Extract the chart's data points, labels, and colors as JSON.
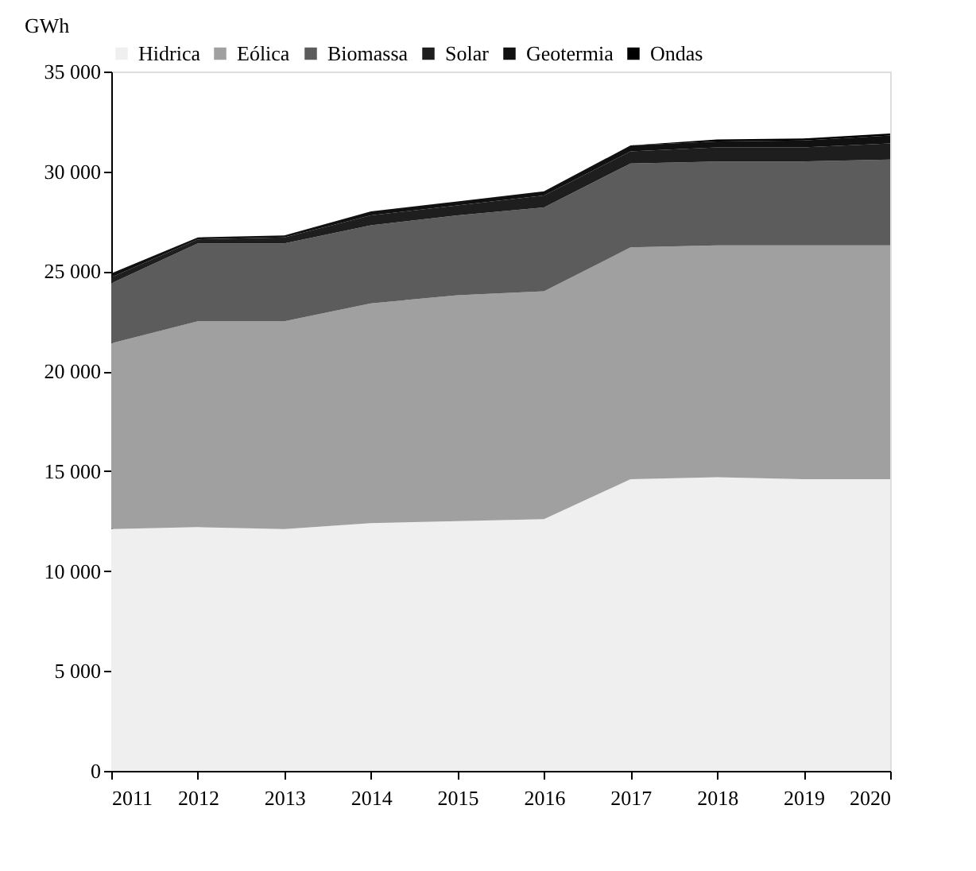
{
  "chart_data": {
    "type": "area",
    "stacked": true,
    "ylabel": "GWh",
    "categories": [
      "2011",
      "2012",
      "2013",
      "2014",
      "2015",
      "2016",
      "2017",
      "2018",
      "2019",
      "2020"
    ],
    "series": [
      {
        "name": "Hidrica",
        "color": "#efefef",
        "values": [
          12100,
          12200,
          12100,
          12400,
          12500,
          12600,
          14600,
          14700,
          14600,
          14600
        ]
      },
      {
        "name": "Eólica",
        "color": "#a0a0a0",
        "values": [
          9300,
          10300,
          10400,
          11000,
          11300,
          11400,
          11600,
          11600,
          11700,
          11700
        ]
      },
      {
        "name": "Biomassa",
        "color": "#5c5c5c",
        "values": [
          3000,
          3900,
          3900,
          3900,
          4000,
          4200,
          4200,
          4200,
          4200,
          4300
        ]
      },
      {
        "name": "Solar",
        "color": "#1e1e1e",
        "values": [
          300,
          200,
          300,
          500,
          500,
          600,
          600,
          700,
          700,
          800
        ]
      },
      {
        "name": "Geotermia",
        "color": "#111111",
        "values": [
          200,
          100,
          100,
          200,
          200,
          200,
          300,
          300,
          350,
          400
        ]
      },
      {
        "name": "Ondas",
        "color": "#000000",
        "values": [
          0,
          0,
          0,
          0,
          0,
          0,
          0,
          100,
          100,
          100
        ]
      }
    ],
    "ylim": [
      0,
      35000
    ],
    "yticks": [
      0,
      {
        "value": 5000,
        "label": "5 000"
      },
      {
        "value": 10000,
        "label": "10 000"
      },
      {
        "value": 15000,
        "label": "15 000"
      },
      {
        "value": 20000,
        "label": "20 000"
      },
      {
        "value": 25000,
        "label": "25 000"
      },
      {
        "value": 30000,
        "label": "30 000"
      },
      {
        "value": 35000,
        "label": "35 000"
      }
    ],
    "grid": false,
    "legend": "top"
  }
}
